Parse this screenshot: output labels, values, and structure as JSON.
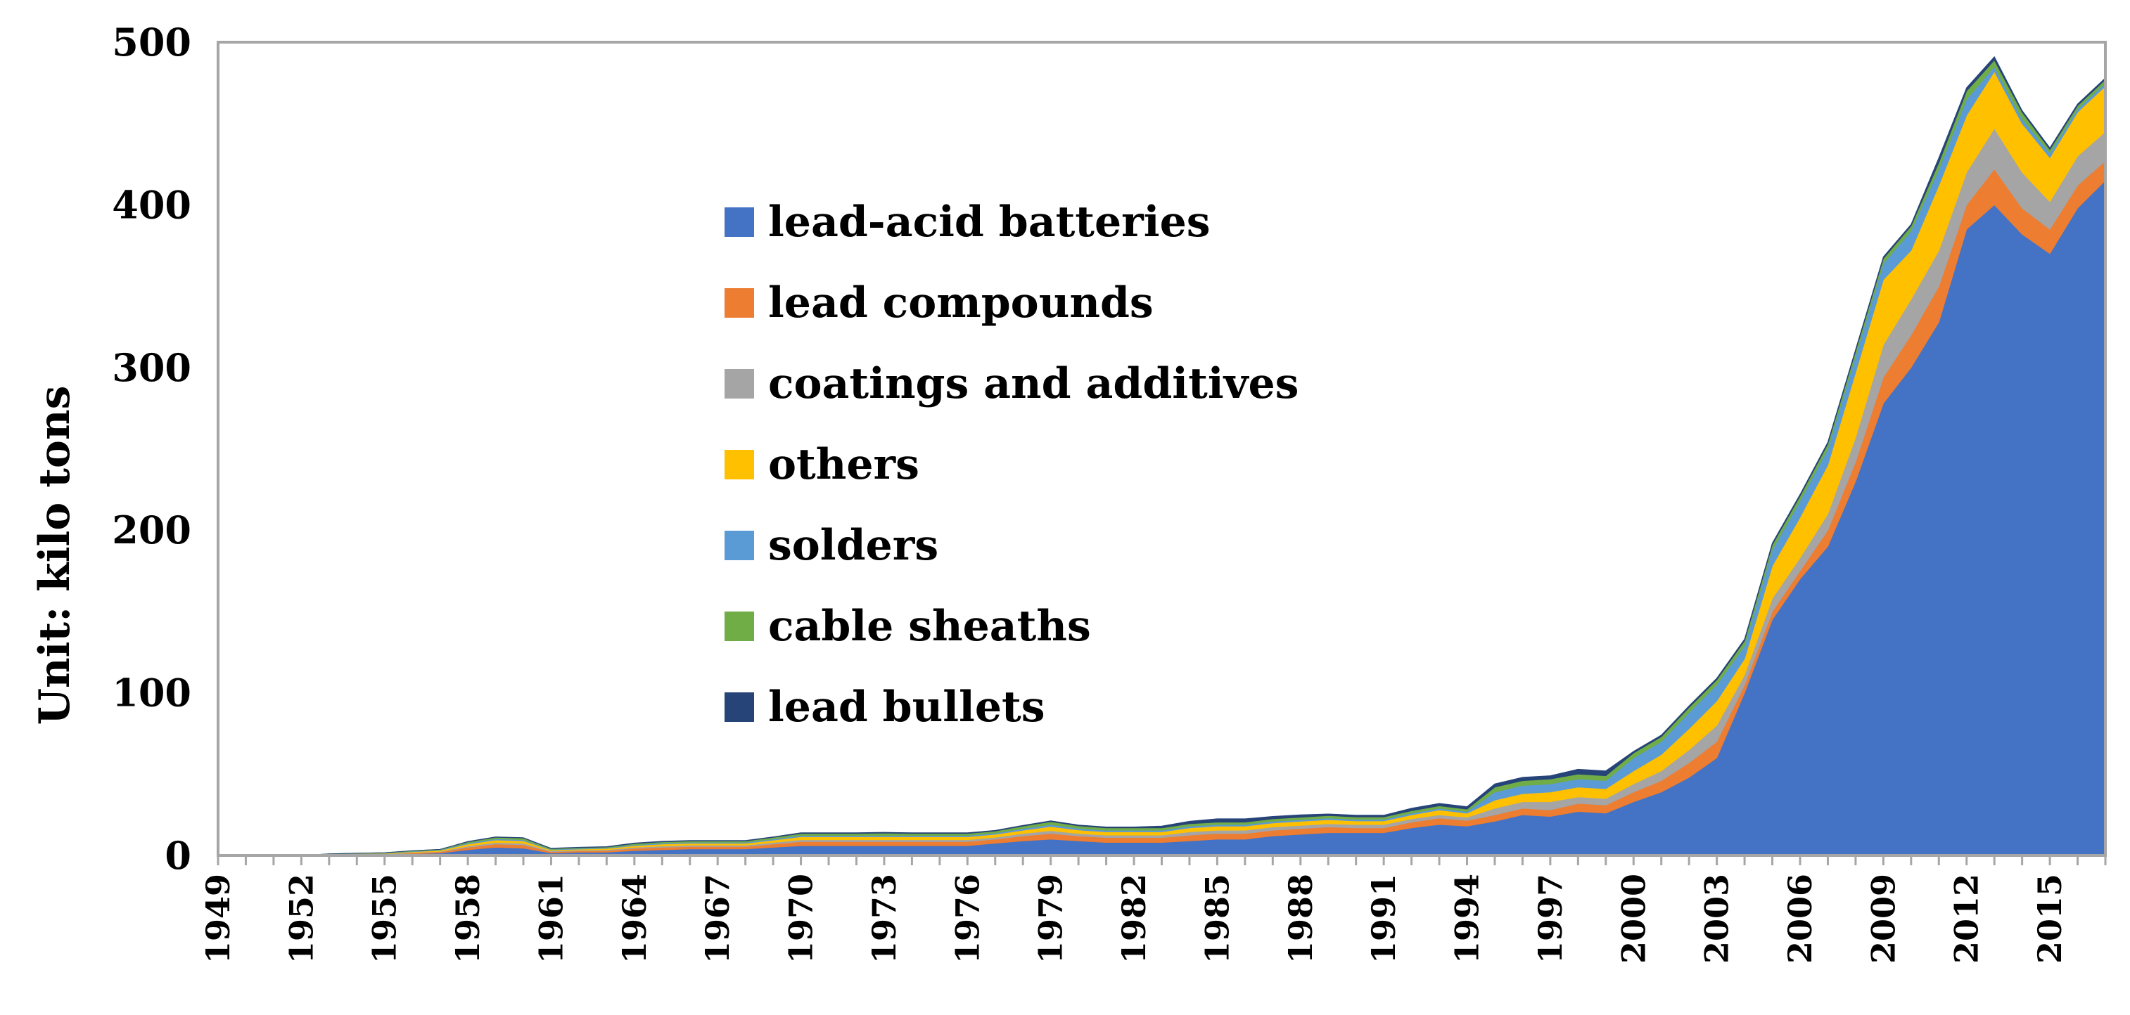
{
  "chart_data": {
    "type": "area",
    "stacked": true,
    "title": "",
    "xlabel": "",
    "ylabel": "Unit: kilo tons",
    "ylim": [
      0,
      500
    ],
    "yticks": [
      0,
      100,
      200,
      300,
      400,
      500
    ],
    "grid": false,
    "legend_position": "upper-center",
    "x": [
      1949,
      1950,
      1951,
      1952,
      1953,
      1954,
      1955,
      1956,
      1957,
      1958,
      1959,
      1960,
      1961,
      1962,
      1963,
      1964,
      1965,
      1966,
      1967,
      1968,
      1969,
      1970,
      1971,
      1972,
      1973,
      1974,
      1975,
      1976,
      1977,
      1978,
      1979,
      1980,
      1981,
      1982,
      1983,
      1984,
      1985,
      1986,
      1987,
      1988,
      1989,
      1990,
      1991,
      1992,
      1993,
      1994,
      1995,
      1996,
      1997,
      1998,
      1999,
      2000,
      2001,
      2002,
      2003,
      2004,
      2005,
      2006,
      2007,
      2008,
      2009,
      2010,
      2011,
      2012,
      2013,
      2014,
      2015,
      2016,
      2017
    ],
    "xtick_labels": [
      "1949",
      "1952",
      "1955",
      "1958",
      "1961",
      "1964",
      "1967",
      "1970",
      "1973",
      "1976",
      "1979",
      "1982",
      "1985",
      "1988",
      "1991",
      "1994",
      "1997",
      "2000",
      "2003",
      "2006",
      "2009",
      "2012",
      "2015"
    ],
    "series": [
      {
        "name": "lead-acid batteries",
        "color": "#4472C4",
        "values": [
          0,
          0,
          0,
          0,
          0.3,
          0.5,
          0.5,
          1,
          1.5,
          3.5,
          5,
          4.5,
          1.5,
          2,
          2,
          3,
          3.5,
          4,
          4,
          4,
          5,
          6,
          6,
          6,
          6,
          6,
          6,
          6,
          7.5,
          9,
          10,
          9,
          8,
          8,
          8,
          9,
          10,
          10,
          12,
          13,
          14,
          14,
          14,
          17,
          19,
          18,
          21,
          25,
          24,
          27,
          26,
          33,
          39,
          48,
          60,
          100,
          145,
          170,
          190,
          230,
          278,
          300,
          328,
          385,
          400,
          382,
          370,
          398,
          415
        ]
      },
      {
        "name": "lead compounds",
        "color": "#ED7D31",
        "values": [
          0,
          0,
          0,
          0,
          0.2,
          0.3,
          0.3,
          0.5,
          0.7,
          1.5,
          2,
          2,
          0.8,
          0.8,
          1,
          1.3,
          1.5,
          1.5,
          1.5,
          1.5,
          2,
          2.5,
          2.5,
          2.5,
          2.5,
          2.5,
          2.5,
          2.5,
          2.5,
          3,
          3.5,
          3,
          3,
          3,
          3,
          3.5,
          3.5,
          3.5,
          3.5,
          3.5,
          3.5,
          3,
          3,
          3.5,
          4,
          3.5,
          4,
          4,
          4,
          5,
          5,
          6,
          7,
          9,
          10,
          5,
          5,
          5,
          10,
          12,
          16,
          20,
          22,
          15,
          22,
          16,
          15,
          14,
          12
        ]
      },
      {
        "name": "coatings and additives",
        "color": "#A5A5A5",
        "values": [
          0,
          0,
          0,
          0,
          0.1,
          0.1,
          0.2,
          0.3,
          0.3,
          0.8,
          1,
          1,
          0.5,
          0.5,
          0.5,
          0.7,
          0.8,
          0.8,
          0.8,
          0.8,
          1,
          1.2,
          1.2,
          1.2,
          1.2,
          1.2,
          1.2,
          1.2,
          1.2,
          1.5,
          1.8,
          1.5,
          1.5,
          1.5,
          1.5,
          2,
          2,
          2,
          2,
          2,
          2,
          2,
          2,
          2,
          2,
          2,
          4,
          4,
          5,
          4,
          4,
          5,
          6,
          8,
          10,
          6,
          8,
          8,
          10,
          15,
          20,
          22,
          22,
          20,
          25,
          22,
          17,
          18,
          18
        ]
      },
      {
        "name": "others",
        "color": "#FFC000",
        "values": [
          0,
          0,
          0,
          0,
          0.2,
          0.3,
          0.3,
          0.5,
          0.6,
          1.2,
          1.5,
          1.5,
          0.6,
          0.6,
          0.8,
          1,
          1.2,
          1.2,
          1.2,
          1.2,
          1.4,
          1.8,
          1.8,
          1.8,
          1.8,
          1.8,
          1.8,
          1.8,
          1.8,
          2,
          2.5,
          2.2,
          2,
          2,
          2,
          2.5,
          2.5,
          2.5,
          2.5,
          2.5,
          2.5,
          2.2,
          2.2,
          2.5,
          3,
          2.5,
          5,
          5,
          6,
          6,
          6,
          8,
          10,
          13,
          15,
          10,
          20,
          25,
          30,
          40,
          40,
          30,
          40,
          35,
          35,
          30,
          27,
          27,
          28
        ]
      },
      {
        "name": "solders",
        "color": "#5B9BD5",
        "values": [
          0,
          0,
          0,
          0,
          0.1,
          0.1,
          0.2,
          0.3,
          0.3,
          0.6,
          0.7,
          0.7,
          0.3,
          0.4,
          0.4,
          0.5,
          0.6,
          0.6,
          0.6,
          0.6,
          0.7,
          0.8,
          0.8,
          0.8,
          0.8,
          0.8,
          0.8,
          0.8,
          0.8,
          1,
          1.2,
          1,
          1,
          1,
          1,
          1,
          1,
          1,
          1,
          1,
          1,
          1,
          1,
          1,
          1,
          1,
          5,
          5,
          5,
          5,
          5,
          8,
          8,
          10,
          10,
          8,
          10,
          10,
          10,
          10,
          10,
          12,
          10,
          10,
          3,
          3,
          3,
          2,
          2
        ]
      },
      {
        "name": "cable sheaths",
        "color": "#70AD47",
        "values": [
          0,
          0,
          0,
          0,
          0.1,
          0.1,
          0.2,
          0.3,
          0.3,
          0.8,
          1,
          1,
          0.5,
          0.5,
          0.5,
          0.8,
          0.8,
          0.8,
          0.8,
          0.8,
          1,
          1.2,
          1.2,
          1.2,
          1.5,
          1.2,
          1.2,
          1.2,
          1.2,
          1.5,
          1.8,
          1.5,
          1.5,
          1.5,
          1.5,
          1.5,
          1.5,
          1.5,
          1.5,
          1.5,
          1.5,
          1.5,
          1.5,
          1.5,
          1.5,
          1.5,
          3,
          3,
          3,
          3,
          3,
          3,
          3,
          3,
          3,
          3,
          3,
          3,
          3,
          3,
          3,
          3,
          4,
          5,
          4,
          4,
          2,
          2,
          2
        ]
      },
      {
        "name": "lead bullets",
        "color": "#264478",
        "values": [
          0,
          0,
          0,
          0,
          0,
          0,
          0,
          0,
          0,
          0.2,
          0.2,
          0.2,
          0.2,
          0.2,
          0.2,
          0.3,
          0.3,
          0.3,
          0.3,
          0.3,
          0.3,
          0.4,
          0.4,
          0.4,
          0.4,
          0.4,
          0.4,
          0.4,
          0.4,
          0.5,
          0.5,
          0.5,
          0.5,
          0.5,
          1,
          1.5,
          2,
          2,
          1.5,
          1.5,
          1,
          1,
          1,
          1.5,
          1.5,
          1.5,
          2,
          2,
          2,
          3,
          3,
          1,
          1,
          1,
          1,
          1,
          1,
          1,
          1,
          1,
          1,
          1,
          3,
          2,
          2,
          1,
          1,
          1,
          1
        ]
      }
    ]
  }
}
